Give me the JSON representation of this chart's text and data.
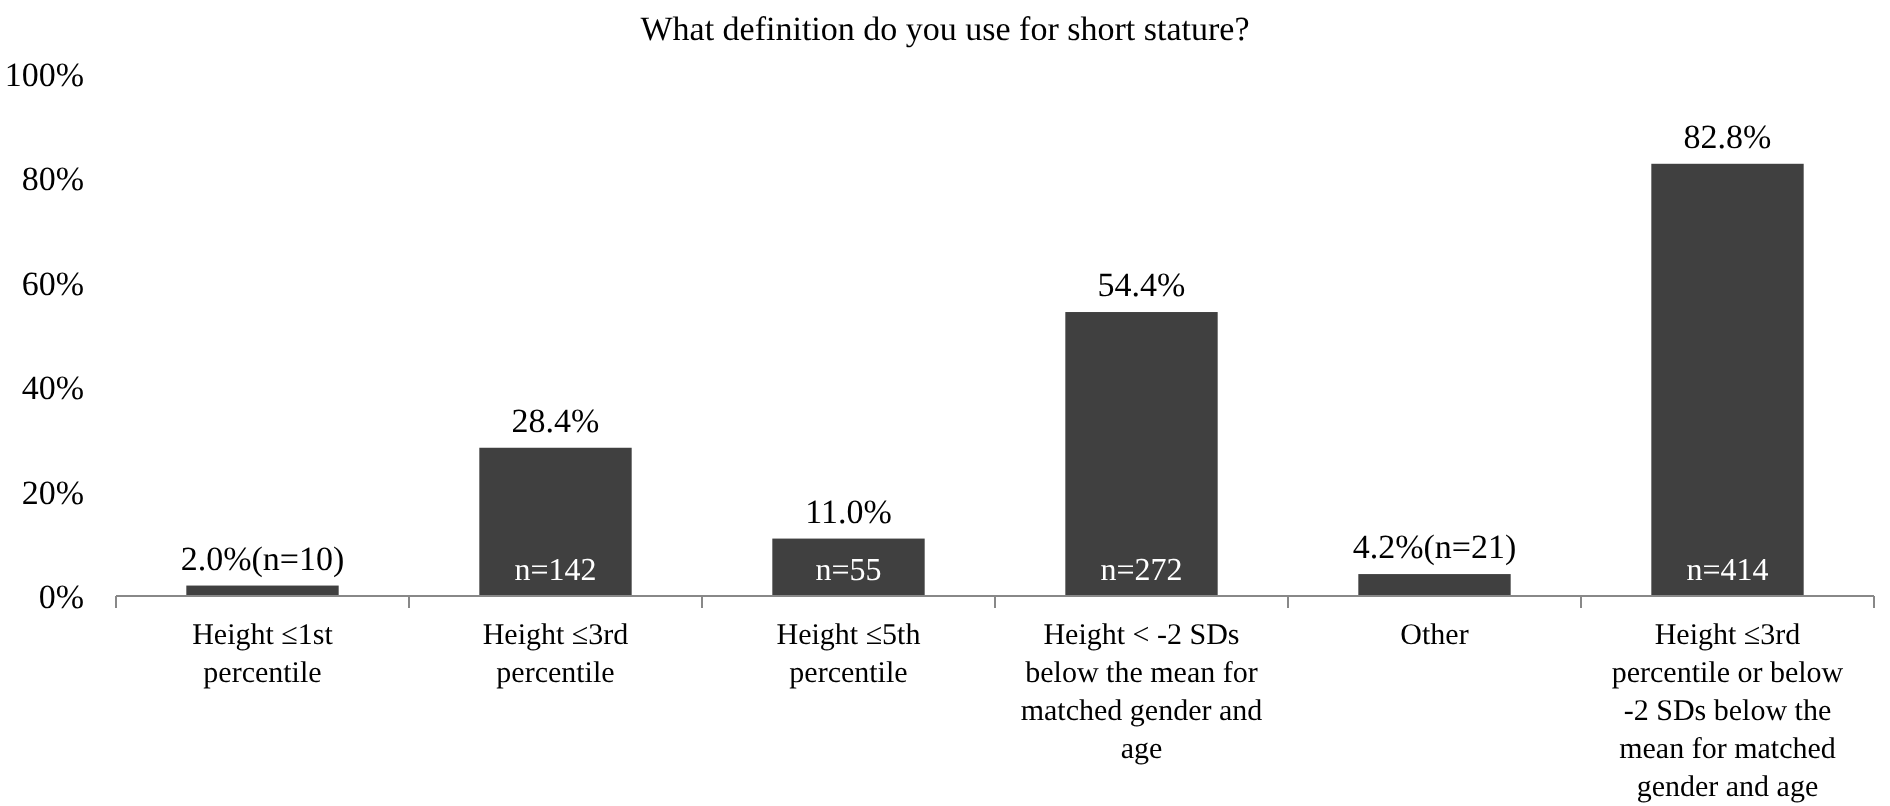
{
  "chart_data": {
    "type": "bar",
    "title": "What definition do you use for short stature?",
    "categories": [
      "Height ≤1st percentile",
      "Height ≤3rd percentile",
      "Height ≤5th percentile",
      "Height < -2 SDs below the mean for matched gender and age",
      "Other",
      "Height ≤3rd percentile or below -2 SDs below the mean for matched gender and age"
    ],
    "values": [
      2.0,
      28.4,
      11.0,
      54.4,
      4.2,
      82.8
    ],
    "color": "#404040",
    "value_labels": [
      "2.0%(n=10)",
      "28.4%",
      "11.0%",
      "54.4%",
      "4.2%(n=21)",
      "82.8%"
    ],
    "annotations": [
      {
        "text": "n=142",
        "x": "Height ≤3rd percentile",
        "y": 0
      },
      {
        "text": "n=55",
        "x": "Height ≤5th percentile",
        "y": 0
      },
      {
        "text": "n=272",
        "x": "Height < -2 SDs below the mean for matched gender and age",
        "y": 0
      },
      {
        "text": "n=414",
        "x": "Height ≤3rd percentile or below -2 SDs below the mean for matched gender and age",
        "y": 0
      }
    ],
    "ylim": [
      0,
      100
    ],
    "yticks": [
      {
        "value": 0,
        "label": "0%"
      },
      {
        "value": 20,
        "label": "20%"
      },
      {
        "value": 40,
        "label": "40%"
      },
      {
        "value": 60,
        "label": "60%"
      },
      {
        "value": 80,
        "label": "80%"
      },
      {
        "value": 100,
        "label": "100%"
      }
    ],
    "grid": false
  }
}
